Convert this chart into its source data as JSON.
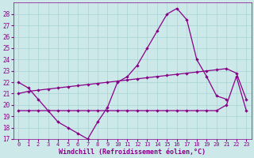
{
  "x": [
    0,
    1,
    2,
    3,
    4,
    5,
    6,
    7,
    8,
    9,
    10,
    11,
    12,
    13,
    14,
    15,
    16,
    17,
    18,
    19,
    20,
    21,
    22,
    23
  ],
  "line1": [
    22.0,
    21.5,
    20.5,
    19.5,
    18.5,
    18.0,
    17.5,
    17.0,
    18.5,
    19.8,
    22.0,
    22.5,
    23.5,
    25.0,
    26.5,
    28.0,
    28.5,
    27.5,
    24.0,
    22.5,
    20.8,
    20.5
  ],
  "line1_x": [
    0,
    1,
    2,
    3,
    4,
    5,
    6,
    7,
    8,
    9,
    10,
    11,
    12,
    13,
    14,
    15,
    16,
    17,
    18,
    19,
    20,
    21
  ],
  "line2": [
    21.0,
    21.2,
    21.3,
    21.4,
    21.5,
    21.6,
    21.7,
    21.8,
    21.9,
    22.0,
    22.1,
    22.2,
    22.3,
    22.4,
    22.5,
    22.6,
    22.7,
    22.8,
    22.9,
    23.0,
    23.1,
    23.2,
    22.8,
    20.5
  ],
  "line3": [
    19.5,
    19.5,
    19.5,
    19.5,
    19.5,
    19.5,
    19.5,
    19.5,
    19.5,
    19.5,
    19.5,
    19.5,
    19.5,
    19.5,
    19.5,
    19.5,
    19.5,
    19.5,
    19.5,
    19.5,
    19.5,
    20.0,
    22.5,
    19.5
  ],
  "background": "#cce8e8",
  "grid_color": "#a8d4d4",
  "line_color": "#880088",
  "xlabel": "Windchill (Refroidissement éolien,°C)",
  "ylim": [
    17,
    29
  ],
  "yticks": [
    17,
    18,
    19,
    20,
    21,
    22,
    23,
    24,
    25,
    26,
    27,
    28
  ],
  "xticks": [
    0,
    1,
    2,
    3,
    4,
    5,
    6,
    7,
    8,
    9,
    10,
    11,
    12,
    13,
    14,
    15,
    16,
    17,
    18,
    19,
    20,
    21,
    22,
    23
  ]
}
